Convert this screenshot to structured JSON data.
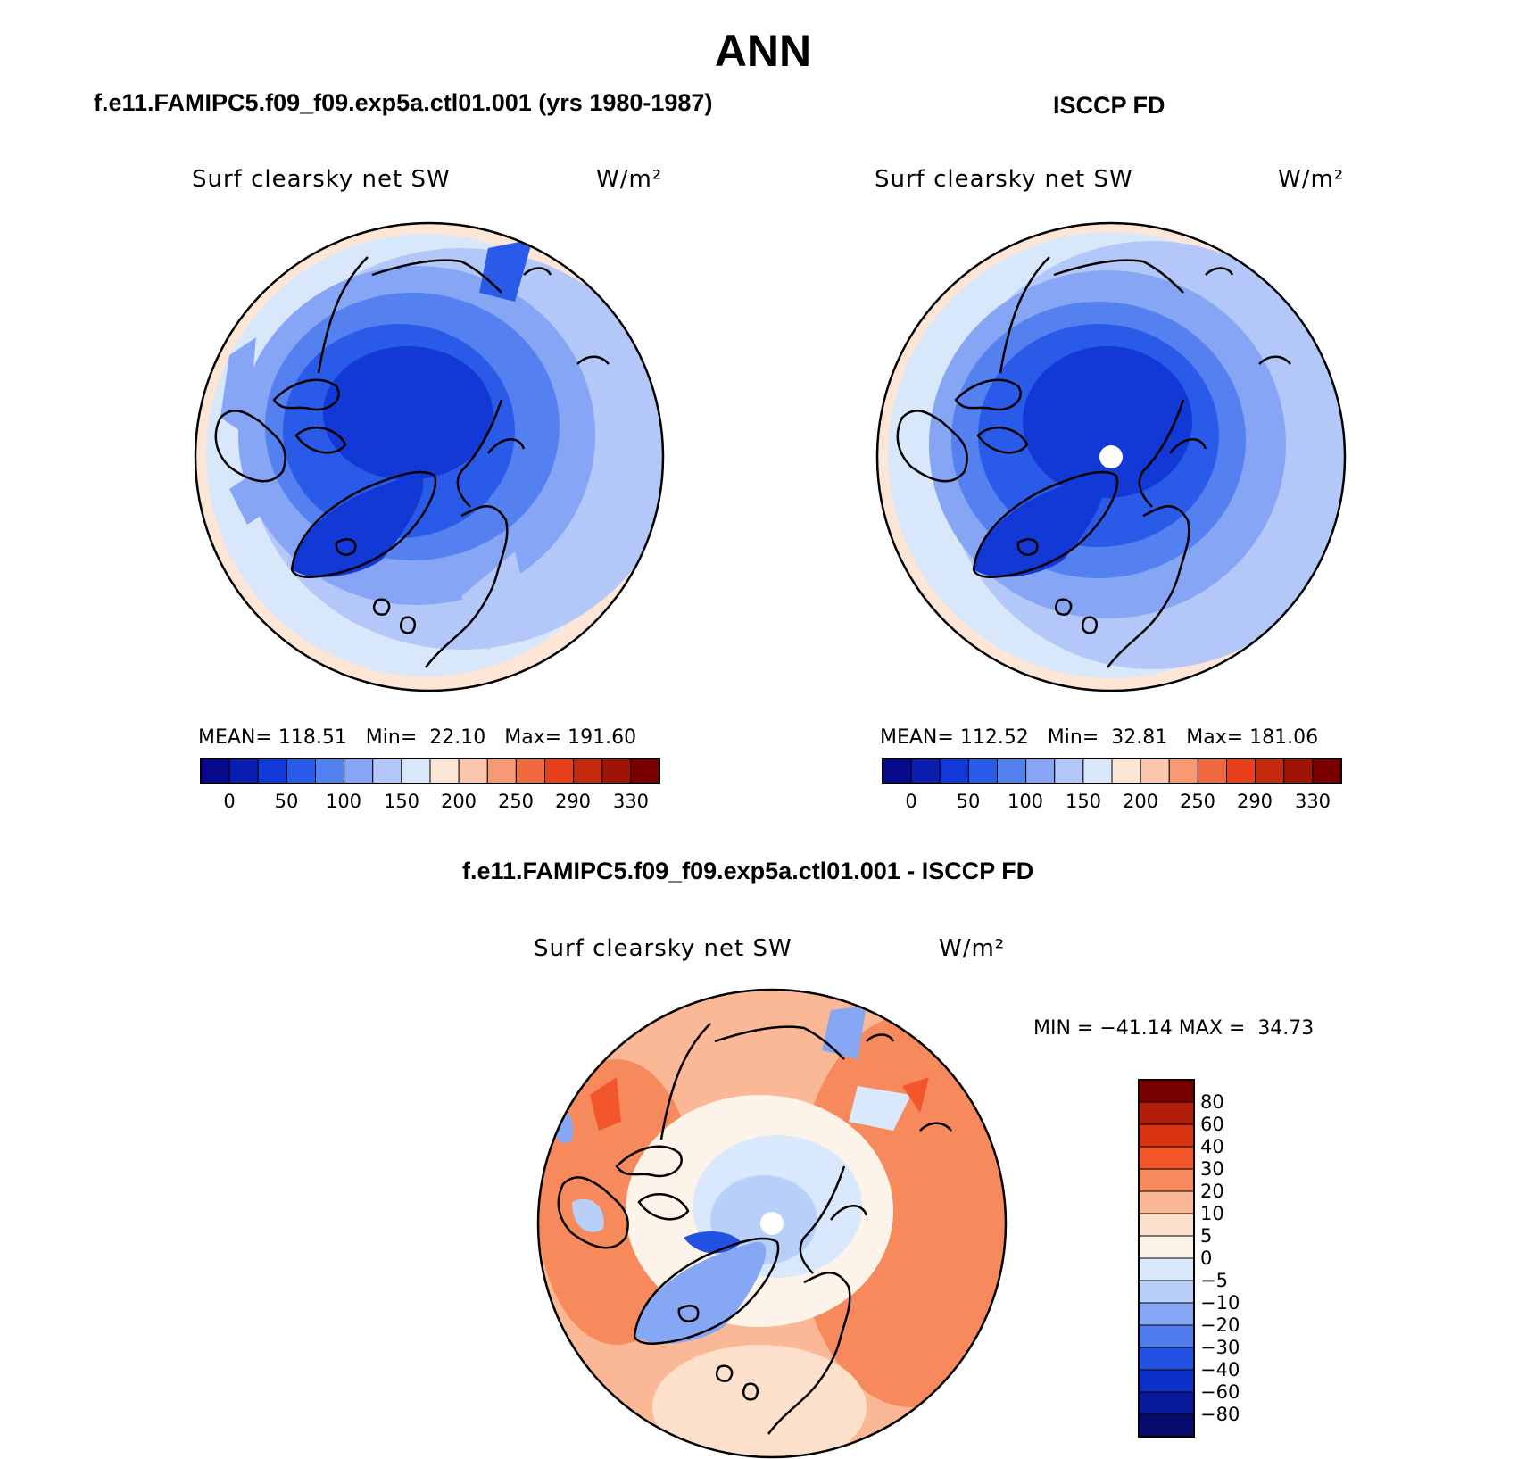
{
  "page": {
    "title": "ANN"
  },
  "panels": [
    {
      "id": "model",
      "case_title": "f.e11.FAMIPC5.f09_f09.exp5a.ctl01.001 (yrs 1980-1987)",
      "variable": "Surf clearsky net SW",
      "units": "W/m²",
      "stats": {
        "mean_label": "MEAN=",
        "mean": "118.51",
        "min_label": "Min=",
        "min": "22.10",
        "max_label": "Max=",
        "max": "191.60"
      },
      "colorbar_ticks": [
        "0",
        "50",
        "100",
        "150",
        "200",
        "250",
        "290",
        "330"
      ]
    },
    {
      "id": "obs",
      "case_title": "ISCCP FD",
      "variable": "Surf clearsky net SW",
      "units": "W/m²",
      "stats": {
        "mean_label": "MEAN=",
        "mean": "112.52",
        "min_label": "Min=",
        "min": "32.81",
        "max_label": "Max=",
        "max": "181.06"
      },
      "colorbar_ticks": [
        "0",
        "50",
        "100",
        "150",
        "200",
        "250",
        "290",
        "330"
      ]
    }
  ],
  "diff_panel": {
    "case_title": "f.e11.FAMIPC5.f09_f09.exp5a.ctl01.001 - ISCCP FD",
    "variable": "Surf clearsky net SW",
    "units": "W/m²",
    "stats": {
      "min_label": "MIN =",
      "min": "−41.14",
      "max_label": "MAX =",
      "max": "34.73"
    },
    "colorbar_ticks": [
      "80",
      "60",
      "40",
      "30",
      "20",
      "10",
      "5",
      "0",
      "−5",
      "−10",
      "−20",
      "−30",
      "−40",
      "−60",
      "−80"
    ]
  },
  "colors": {
    "abs_scale": [
      "#08088a",
      "#0a1fb0",
      "#1238d6",
      "#2a5be8",
      "#5480f0",
      "#86a6f5",
      "#b3c8f8",
      "#d9e7fb",
      "#fde6d6",
      "#fbc8ad",
      "#f79a74",
      "#f06a3f",
      "#e5401a",
      "#c42a0f",
      "#a01408",
      "#7a0000"
    ],
    "diff_scale": [
      "#7a0000",
      "#b31e0b",
      "#d8340f",
      "#f2562a",
      "#f78a5c",
      "#fab896",
      "#fde0cc",
      "#fdf3e8",
      "#d9e8fc",
      "#b8cff9",
      "#86a8f4",
      "#4f7ded",
      "#2152e3",
      "#0c30c8",
      "#0a1a9c",
      "#070a6e"
    ]
  }
}
